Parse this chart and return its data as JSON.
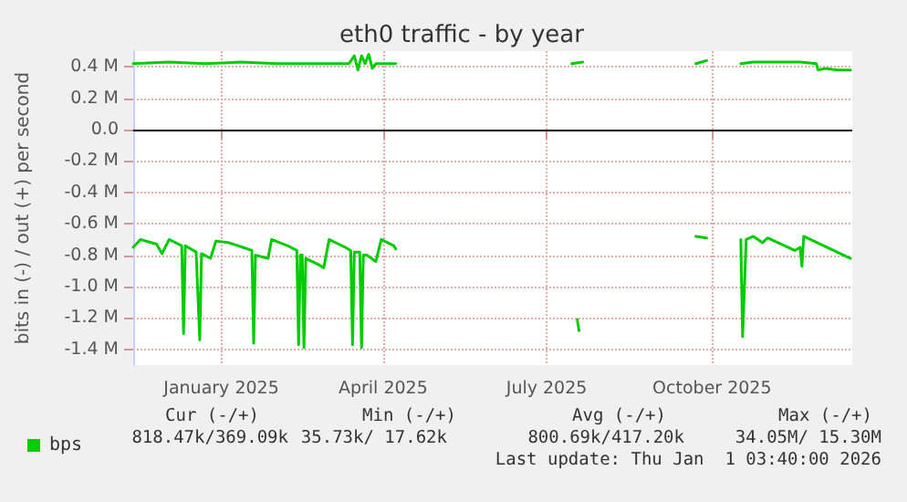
{
  "chart_data": {
    "type": "line",
    "title": "eth0 traffic - by year",
    "ylabel": "bits in (-) / out (+) per second",
    "xlim": [
      "2024-11-27",
      "2026-01-01"
    ],
    "xticks": [
      {
        "value": "2025-01-15",
        "label": "January 2025"
      },
      {
        "value": "2025-04-15",
        "label": "April 2025"
      },
      {
        "value": "2025-07-15",
        "label": "July 2025"
      },
      {
        "value": "2025-10-15",
        "label": "October 2025"
      }
    ],
    "ylim": [
      -1.5,
      0.5
    ],
    "yticks": [
      {
        "value": -1.4,
        "label": "-1.4 M"
      },
      {
        "value": -1.2,
        "label": "-1.2 M"
      },
      {
        "value": -1.0,
        "label": "-1.0 M"
      },
      {
        "value": -0.8,
        "label": "-0.8 M"
      },
      {
        "value": -0.6,
        "label": "-0.6 M"
      },
      {
        "value": -0.4,
        "label": "-0.4 M"
      },
      {
        "value": -0.2,
        "label": "-0.2 M"
      },
      {
        "value": 0,
        "label": "0.0"
      },
      {
        "value": 0.2,
        "label": "0.2 M"
      },
      {
        "value": 0.4,
        "label": "0.4 M"
      }
    ],
    "grid": true,
    "legend": "bottom",
    "marker": "none",
    "line_style": "solid",
    "ref_lines": [
      {
        "axis": "y",
        "value": 0,
        "color": "#000000"
      }
    ],
    "series": [
      {
        "name": "bps",
        "color": "#00cc00",
        "x": [
          "2024-11-27",
          "2024-12-17",
          "2025-01-06",
          "2025-01-26",
          "2025-02-15",
          "2025-03-07",
          "2025-03-27",
          "2025-03-30",
          "2025-04-01",
          "2025-04-03",
          "2025-04-05",
          "2025-04-07",
          "2025-04-09",
          "2025-04-11",
          "2025-04-22",
          "2025-05-01",
          "2025-07-29",
          "2025-08-04",
          "2025-08-10",
          "2025-10-06",
          "2025-10-12",
          "2025-10-20",
          "2025-10-31",
          "2025-11-07",
          "2025-11-22",
          "2025-12-03",
          "2025-12-12",
          "2025-12-13",
          "2025-12-17",
          "2025-12-24",
          "2025-12-31"
        ],
        "values": [
          0.42,
          0.43,
          0.42,
          0.43,
          0.42,
          0.42,
          0.42,
          0.47,
          0.38,
          0.47,
          0.42,
          0.48,
          0.39,
          0.42,
          0.42,
          null,
          0.42,
          0.43,
          null,
          0.42,
          0.44,
          null,
          0.42,
          0.43,
          0.43,
          0.43,
          0.42,
          0.38,
          0.39,
          0.38,
          0.38
        ]
      },
      {
        "color": "#00cc00",
        "x": [
          "2024-11-27",
          "2024-12-01",
          "2024-12-10",
          "2024-12-13",
          "2024-12-17",
          "2024-12-24",
          "2024-12-25",
          "2024-12-26",
          "2025-01-01",
          "2025-01-03",
          "2025-01-04",
          "2025-01-09",
          "2025-01-12",
          "2025-01-19",
          "2025-01-27",
          "2025-02-01",
          "2025-02-02",
          "2025-02-03",
          "2025-02-10",
          "2025-02-12",
          "2025-02-21",
          "2025-02-26",
          "2025-02-27",
          "2025-02-28",
          "2025-03-01",
          "2025-03-02",
          "2025-03-03",
          "2025-03-10",
          "2025-03-13",
          "2025-03-16",
          "2025-03-25",
          "2025-03-28",
          "2025-03-29",
          "2025-03-30",
          "2025-04-02",
          "2025-04-03",
          "2025-04-04",
          "2025-04-06",
          "2025-04-11",
          "2025-04-14",
          "2025-04-21",
          "2025-04-22",
          "2025-05-01",
          "2025-08-01",
          "2025-08-02",
          "2025-08-10",
          "2025-10-06",
          "2025-10-12",
          "2025-10-20",
          "2025-10-31",
          "2025-11-01",
          "2025-11-03",
          "2025-11-07",
          "2025-11-12",
          "2025-11-15",
          "2025-11-30",
          "2025-12-03",
          "2025-12-04",
          "2025-12-05",
          "2025-12-31"
        ],
        "values": [
          -0.75,
          -0.7,
          -0.73,
          -0.79,
          -0.7,
          -0.74,
          -1.3,
          -0.74,
          -0.78,
          -1.34,
          -0.79,
          -0.82,
          -0.71,
          -0.72,
          -0.75,
          -0.77,
          -1.36,
          -0.8,
          -0.82,
          -0.7,
          -0.74,
          -0.77,
          -1.37,
          -0.8,
          -0.8,
          -1.39,
          -0.82,
          -0.86,
          -0.88,
          -0.7,
          -0.75,
          -0.77,
          -1.37,
          -0.78,
          -0.78,
          -1.39,
          -0.8,
          -0.8,
          -0.84,
          -0.7,
          -0.74,
          -0.76,
          null,
          -1.21,
          -1.28,
          null,
          -0.68,
          -0.69,
          null,
          -0.7,
          -1.32,
          -0.7,
          -0.68,
          -0.72,
          -0.69,
          -0.77,
          -0.75,
          -0.87,
          -0.68,
          -0.82
        ]
      }
    ],
    "annotations": [
      "Cur (-/+)",
      "Min (-/+)",
      "Avg (-/+)",
      "Max (-/+)",
      "818.47k/369.09k",
      "35.73k/ 17.62k",
      "800.69k/417.20k",
      "34.05M/ 15.30M",
      "Last update: Thu Jan  1 03:40:00 2026"
    ]
  }
}
